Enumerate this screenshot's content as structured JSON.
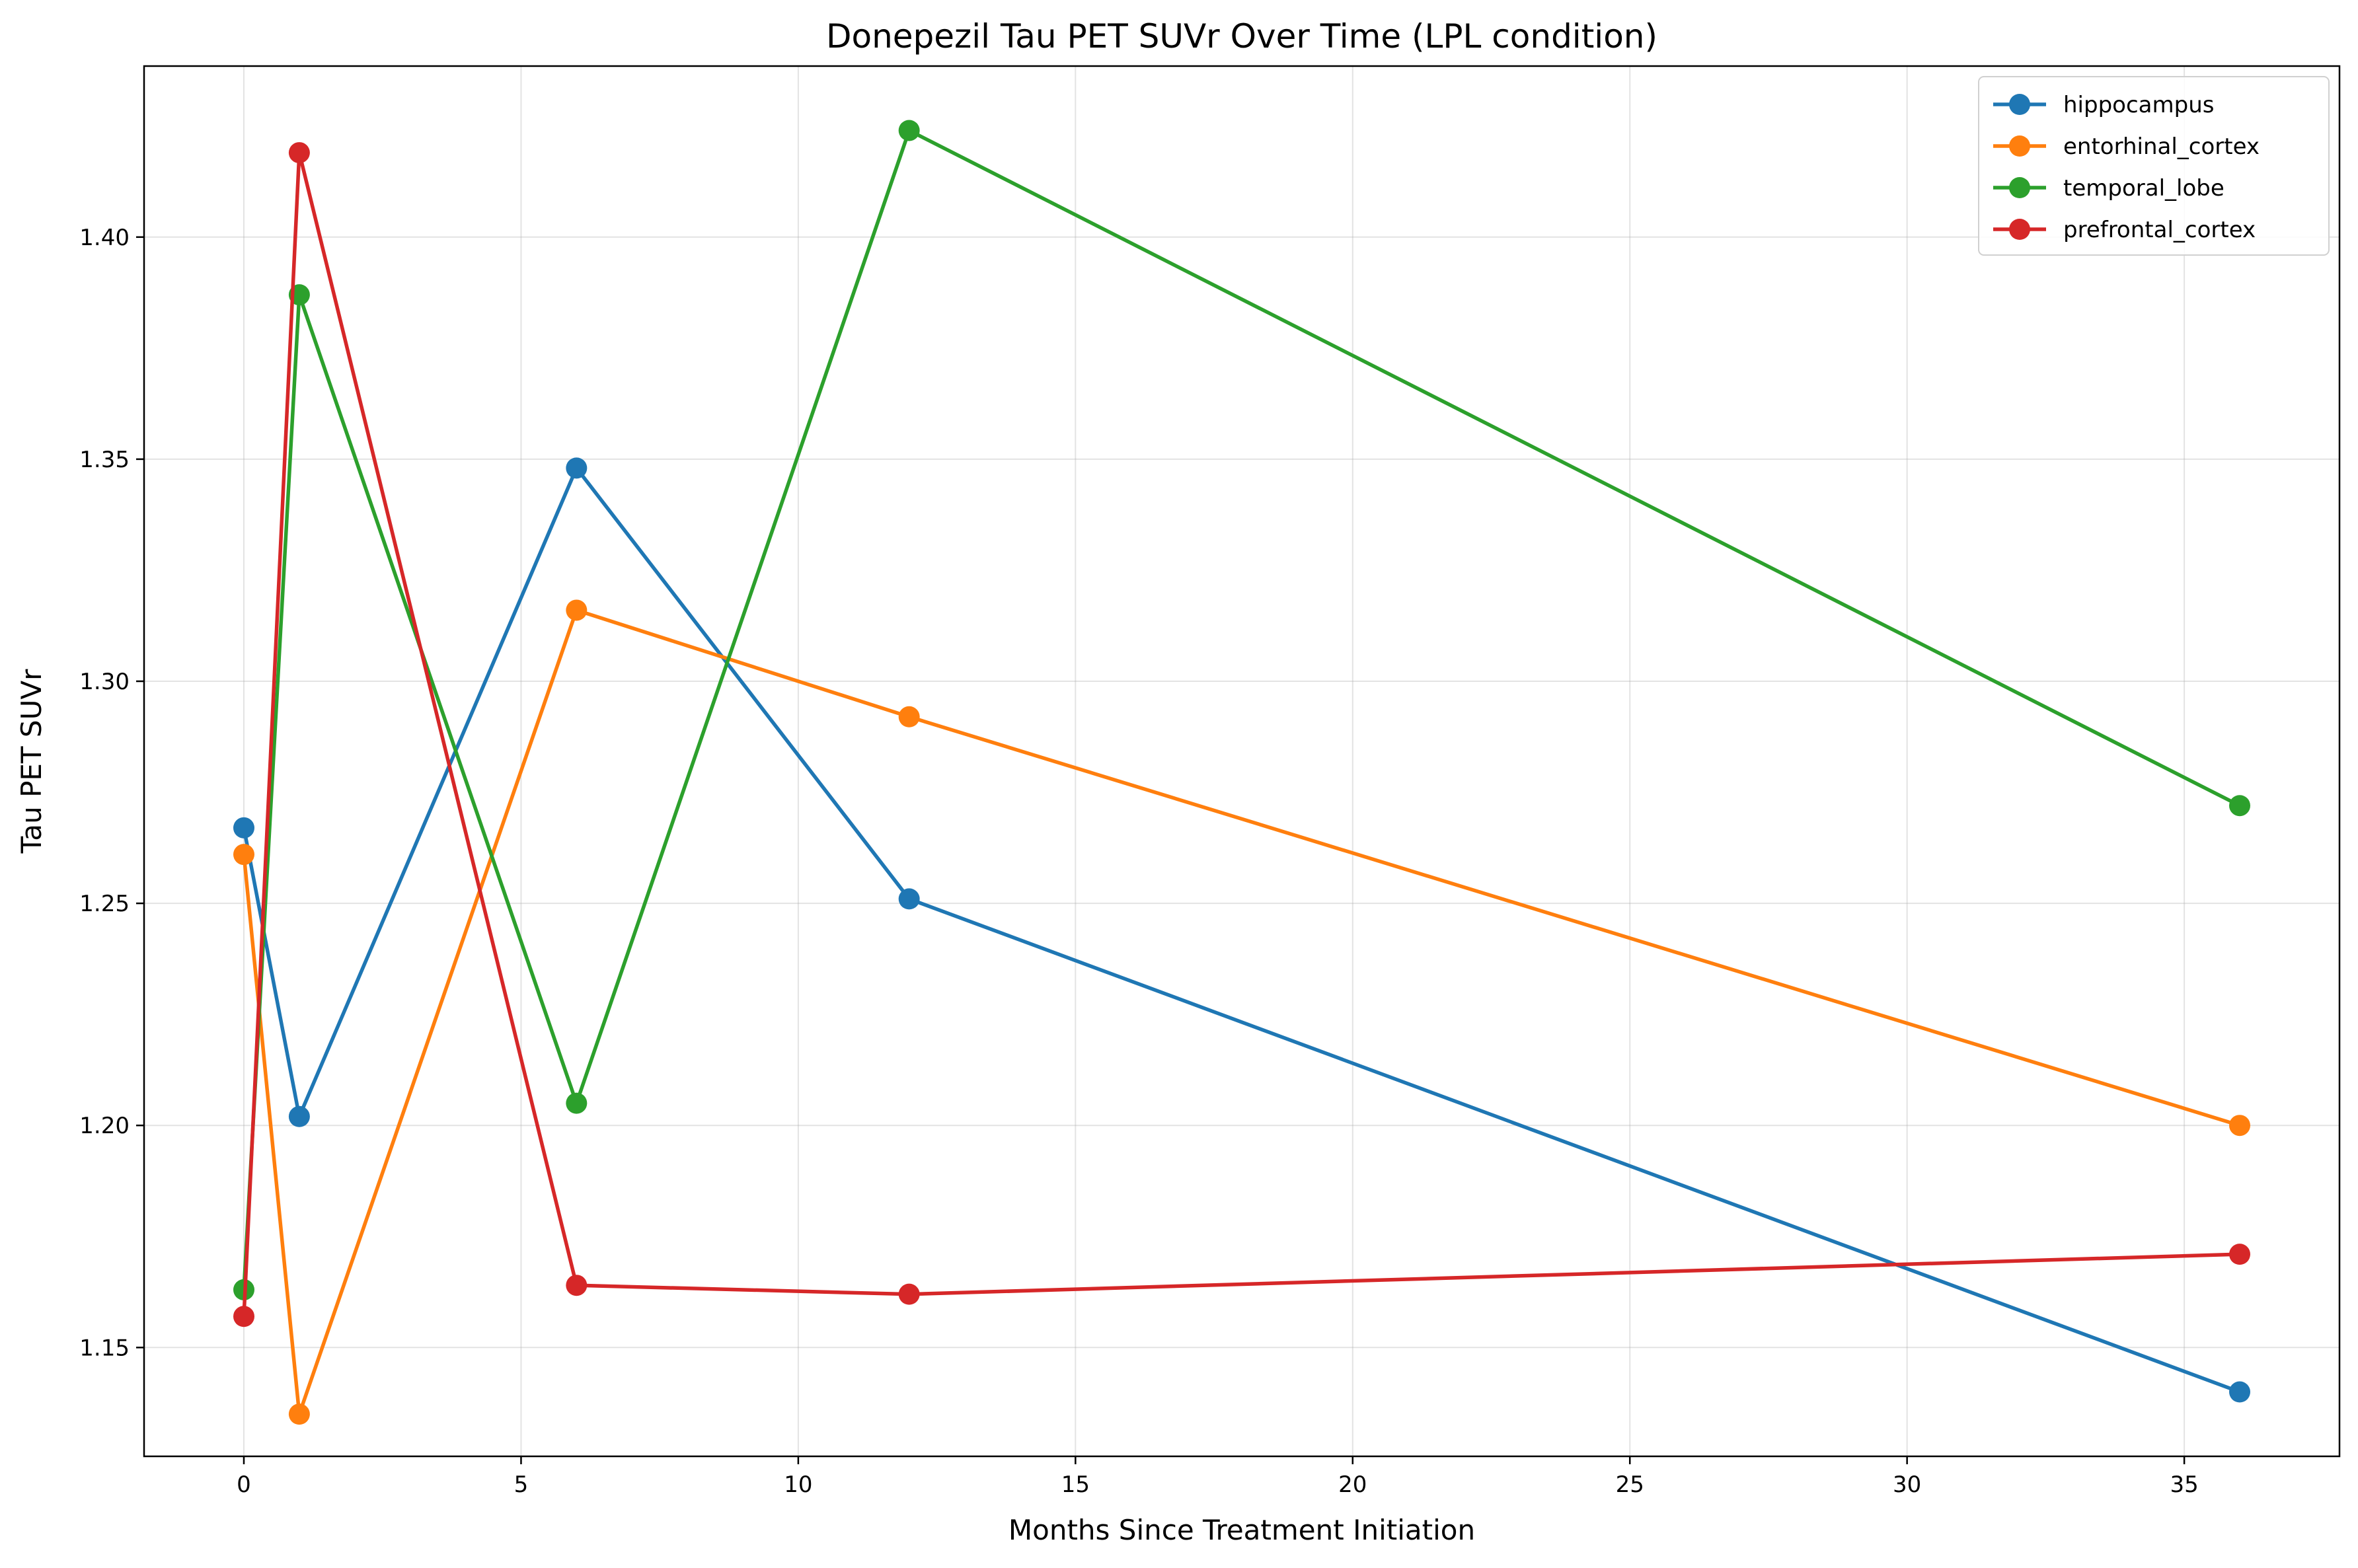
{
  "chart_data": {
    "type": "line",
    "title": "Donepezil Tau PET SUVr Over Time (LPL condition)",
    "xlabel": "Months Since Treatment Initiation",
    "ylabel": "Tau PET SUVr",
    "xlim": [
      -1.8,
      37.8
    ],
    "ylim": [
      1.1255,
      1.4385
    ],
    "xticks": [
      0,
      5,
      10,
      15,
      20,
      25,
      30,
      35
    ],
    "xtick_labels": [
      "0",
      "5",
      "10",
      "15",
      "20",
      "25",
      "30",
      "35"
    ],
    "yticks": [
      1.15,
      1.2,
      1.25,
      1.3,
      1.35,
      1.4
    ],
    "ytick_labels": [
      "1.15",
      "1.20",
      "1.25",
      "1.30",
      "1.35",
      "1.40"
    ],
    "grid": true,
    "legend_position": "top-right",
    "x": [
      0,
      1,
      6,
      12,
      36
    ],
    "series": [
      {
        "name": "hippocampus",
        "color": "#1f77b4",
        "values": [
          1.267,
          1.202,
          1.348,
          1.251,
          1.14
        ]
      },
      {
        "name": "entorhinal_cortex",
        "color": "#ff7f0e",
        "values": [
          1.261,
          1.135,
          1.316,
          1.292,
          1.2
        ]
      },
      {
        "name": "temporal_lobe",
        "color": "#2ca02c",
        "values": [
          1.163,
          1.387,
          1.205,
          1.424,
          1.272
        ]
      },
      {
        "name": "prefrontal_cortex",
        "color": "#d62728",
        "values": [
          1.157,
          1.419,
          1.164,
          1.162,
          1.171
        ]
      }
    ]
  }
}
